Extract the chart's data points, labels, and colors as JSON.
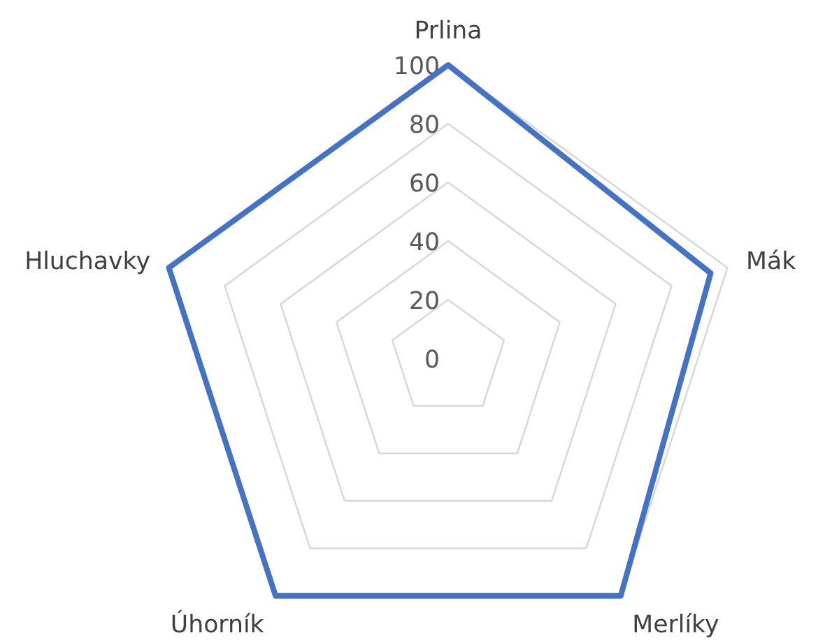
{
  "chart_data": {
    "type": "radar",
    "categories": [
      "Prlina",
      "Mák",
      "Merlíky",
      "Úhorník",
      "Hluchavky"
    ],
    "series": [
      {
        "color": "#4472c4",
        "values": [
          100,
          94,
          100,
          100,
          100
        ]
      }
    ],
    "ylim": [
      0,
      100
    ],
    "yticks": [
      0,
      20,
      40,
      60,
      80,
      100
    ],
    "grid": true,
    "line_style": "solid"
  }
}
